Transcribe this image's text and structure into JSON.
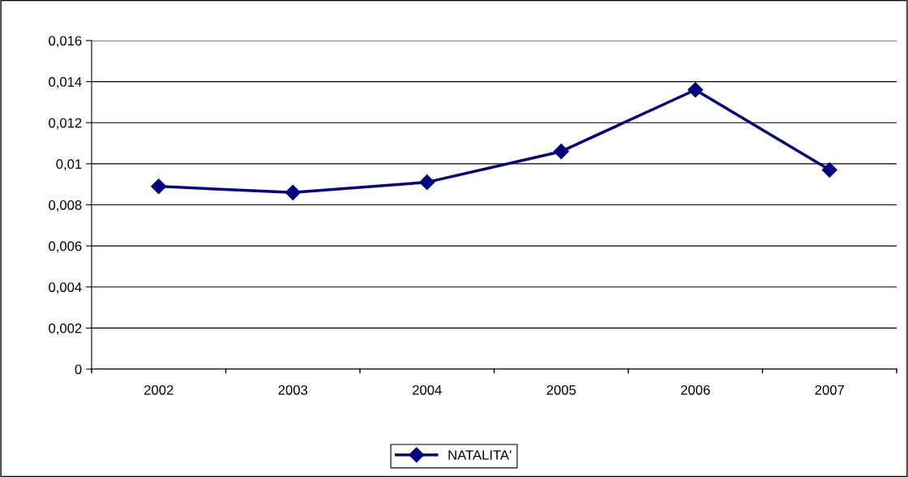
{
  "chart_data": {
    "type": "line",
    "categories": [
      "2002",
      "2003",
      "2004",
      "2005",
      "2006",
      "2007"
    ],
    "series": [
      {
        "name": "NATALITA'",
        "color": "#000080",
        "values": [
          0.0089,
          0.0086,
          0.0091,
          0.0106,
          0.0136,
          0.0097
        ]
      }
    ],
    "ylim": [
      0,
      0.016
    ],
    "yticks": [
      {
        "value": 0,
        "label": "0"
      },
      {
        "value": 0.002,
        "label": "0,002"
      },
      {
        "value": 0.004,
        "label": "0,004"
      },
      {
        "value": 0.006,
        "label": "0,006"
      },
      {
        "value": 0.008,
        "label": "0,008"
      },
      {
        "value": 0.01,
        "label": "0,01"
      },
      {
        "value": 0.012,
        "label": "0,012"
      },
      {
        "value": 0.014,
        "label": "0,014"
      },
      {
        "value": 0.016,
        "label": "0,016"
      }
    ],
    "grid": "y",
    "legend": "bottom",
    "marker": "diamond",
    "line_style": "solid"
  }
}
